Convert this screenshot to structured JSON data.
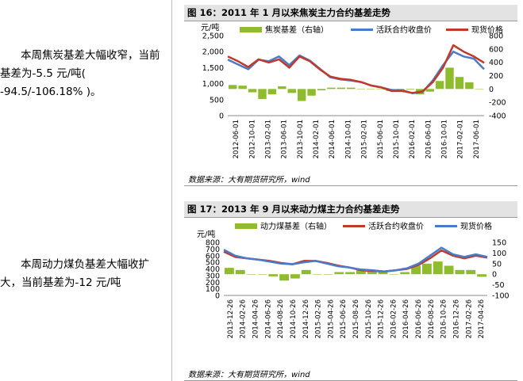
{
  "left_text": {
    "para1": "本周焦炭基差大幅收窄，当前基差为-5.5 元/吨( -94.5/-106.18% )。",
    "para2": "本周动力煤负基差大幅收扩大，当前基差为-12 元/吨"
  },
  "figures": {
    "fig16": {
      "title": "图 16：2011 年 1 月以来焦炭主力合约基差走势",
      "source": "数据来源：大有期货研究所，wind"
    },
    "fig17": {
      "title": "图 17：2013 年 9 月以来动力煤主力合约基差走势",
      "source": "数据来源：大有期货研究所，wind"
    }
  },
  "colors": {
    "basis_bar": "#8fbc2f",
    "futures_line": "#4a7bc8",
    "spot_line": "#c0392b"
  },
  "chart_data": [
    {
      "type": "line",
      "title": "图 16：2011 年 1 月以来焦炭主力合约基差走势",
      "left_unit": "元/吨",
      "left_ylim": [
        0,
        2500
      ],
      "left_ticks": [
        "2,500",
        "2,000",
        "1,500",
        "1,000",
        "500",
        "0"
      ],
      "right_ylim": [
        -400,
        800
      ],
      "right_ticks": [
        "800",
        "600",
        "400",
        "200",
        "0",
        "-200",
        "-400"
      ],
      "x_ticks": [
        "2012-06-01",
        "2012-10-01",
        "2013-02-01",
        "2013-06-01",
        "2013-10-01",
        "2014-02-01",
        "2014-06-01",
        "2014-10-01",
        "2015-02-01",
        "2015-06-01",
        "2015-10-01",
        "2016-02-01",
        "2016-06-01",
        "2016-10-01",
        "2017-02-01",
        "2017-06-01"
      ],
      "legend": [
        "焦炭基差（右轴）",
        "活跃合约收盘价",
        "现货价格"
      ],
      "series": [
        {
          "name": "活跃合约收盘价",
          "axis": "left",
          "values": [
            1750,
            1600,
            1450,
            1750,
            1700,
            1850,
            1580,
            1880,
            1720,
            1460,
            1200,
            1130,
            1100,
            1050,
            940,
            880,
            800,
            800,
            700,
            740,
            1100,
            1580,
            2000,
            1850,
            1780,
            1450
          ]
        },
        {
          "name": "现货价格",
          "axis": "left",
          "values": [
            1850,
            1700,
            1520,
            1760,
            1660,
            1760,
            1500,
            1850,
            1700,
            1440,
            1220,
            1150,
            1120,
            1050,
            940,
            880,
            770,
            770,
            710,
            760,
            1050,
            1500,
            2200,
            2000,
            1850,
            1650
          ]
        },
        {
          "name": "焦炭基差（右轴）",
          "axis": "right",
          "values": [
            60,
            50,
            -50,
            -150,
            -80,
            40,
            -60,
            -180,
            -100,
            -20,
            20,
            20,
            20,
            0,
            0,
            0,
            -30,
            -20,
            -10,
            -80,
            -40,
            120,
            320,
            180,
            100,
            -5
          ]
        }
      ]
    },
    {
      "type": "line",
      "title": "图 17：2013 年 9 月以来动力煤主力合约基差走势",
      "left_unit": "元/吨",
      "left_ylim": [
        0,
        800
      ],
      "left_ticks": [
        "800",
        "700",
        "600",
        "500",
        "400",
        "300",
        "200",
        "100",
        "0"
      ],
      "right_ylim": [
        -100,
        150
      ],
      "right_ticks": [
        "150",
        "100",
        "50",
        "0",
        "-50",
        "-100"
      ],
      "x_ticks": [
        "2013-12-26",
        "2014-02-26",
        "2014-04-26",
        "2014-06-26",
        "2014-08-26",
        "2014-10-26",
        "2014-12-26",
        "2015-02-26",
        "2015-04-26",
        "2015-06-26",
        "2015-08-26",
        "2015-10-26",
        "2015-12-26",
        "2016-02-26",
        "2016-04-26",
        "2016-06-26",
        "2016-08-26",
        "2016-10-26",
        "2016-12-26",
        "2017-02-26",
        "2017-04-26"
      ],
      "legend": [
        "动力煤基差（右轴）",
        "活跃合约收盘价",
        "现货价格"
      ],
      "series": [
        {
          "name": "活跃合约收盘价",
          "axis": "left",
          "values": [
            660,
            580,
            560,
            540,
            520,
            490,
            470,
            520,
            520,
            490,
            450,
            420,
            380,
            370,
            360,
            380,
            400,
            460,
            560,
            680,
            600,
            560,
            600,
            570
          ]
        },
        {
          "name": "现货价格",
          "axis": "left",
          "values": [
            690,
            600,
            560,
            540,
            510,
            480,
            470,
            500,
            520,
            480,
            440,
            420,
            390,
            380,
            360,
            380,
            410,
            480,
            600,
            720,
            620,
            580,
            620,
            580
          ]
        },
        {
          "name": "动力煤基差（右轴）",
          "axis": "right",
          "values": [
            30,
            20,
            0,
            0,
            -10,
            -30,
            -20,
            20,
            0,
            0,
            10,
            10,
            20,
            20,
            10,
            0,
            10,
            40,
            50,
            60,
            40,
            20,
            20,
            -12
          ]
        }
      ]
    }
  ]
}
